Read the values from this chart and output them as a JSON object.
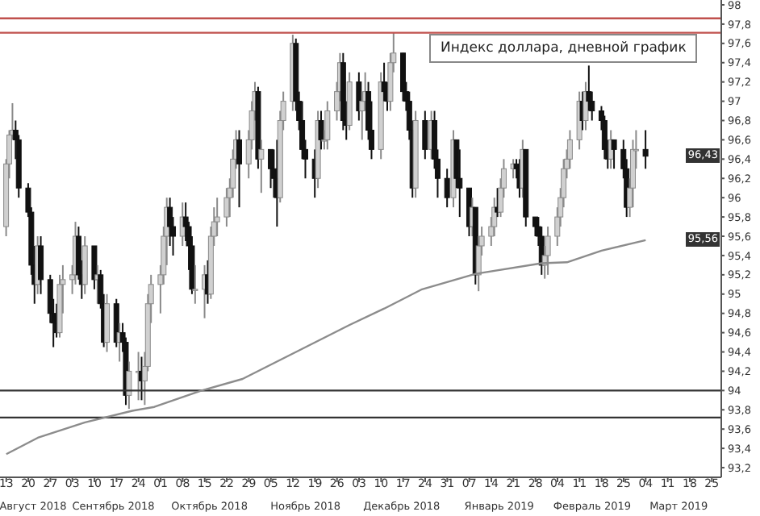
{
  "chart_data": {
    "type": "candlestick",
    "title": "Индекс доллара, дневной график",
    "x": [
      "2018-08-13",
      "2018-08-14",
      "2018-08-15",
      "2018-08-16",
      "2018-08-17",
      "2018-08-20",
      "2018-08-21",
      "2018-08-22",
      "2018-08-23",
      "2018-08-24",
      "2018-08-27",
      "2018-08-28",
      "2018-08-29",
      "2018-08-30",
      "2018-08-31",
      "2018-09-03",
      "2018-09-04",
      "2018-09-05",
      "2018-09-06",
      "2018-09-07",
      "2018-09-10",
      "2018-09-11",
      "2018-09-12",
      "2018-09-13",
      "2018-09-14",
      "2018-09-17",
      "2018-09-18",
      "2018-09-19",
      "2018-09-20",
      "2018-09-21",
      "2018-09-24",
      "2018-09-25",
      "2018-09-26",
      "2018-09-27",
      "2018-09-28",
      "2018-10-01",
      "2018-10-02",
      "2018-10-03",
      "2018-10-04",
      "2018-10-05",
      "2018-10-08",
      "2018-10-09",
      "2018-10-10",
      "2018-10-11",
      "2018-10-12",
      "2018-10-15",
      "2018-10-16",
      "2018-10-17",
      "2018-10-18",
      "2018-10-19",
      "2018-10-22",
      "2018-10-23",
      "2018-10-24",
      "2018-10-25",
      "2018-10-26",
      "2018-10-29",
      "2018-10-30",
      "2018-10-31",
      "2018-11-01",
      "2018-11-02",
      "2018-11-05",
      "2018-11-06",
      "2018-11-07",
      "2018-11-08",
      "2018-11-09",
      "2018-11-12",
      "2018-11-13",
      "2018-11-14",
      "2018-11-15",
      "2018-11-16",
      "2018-11-19",
      "2018-11-20",
      "2018-11-21",
      "2018-11-22",
      "2018-11-23",
      "2018-11-26",
      "2018-11-27",
      "2018-11-28",
      "2018-11-29",
      "2018-11-30",
      "2018-12-03",
      "2018-12-04",
      "2018-12-05",
      "2018-12-06",
      "2018-12-07",
      "2018-12-10",
      "2018-12-11",
      "2018-12-12",
      "2018-12-13",
      "2018-12-14",
      "2018-12-17",
      "2018-12-18",
      "2018-12-19",
      "2018-12-20",
      "2018-12-21",
      "2018-12-24",
      "2018-12-26",
      "2018-12-27",
      "2018-12-28",
      "2018-12-31",
      "2019-01-02",
      "2019-01-03",
      "2019-01-04",
      "2019-01-07",
      "2019-01-08",
      "2019-01-09",
      "2019-01-10",
      "2019-01-11",
      "2019-01-14",
      "2019-01-15",
      "2019-01-16",
      "2019-01-17",
      "2019-01-18",
      "2019-01-21",
      "2019-01-22",
      "2019-01-23",
      "2019-01-24",
      "2019-01-25",
      "2019-01-28",
      "2019-01-29",
      "2019-01-30",
      "2019-01-31",
      "2019-02-01",
      "2019-02-04",
      "2019-02-05",
      "2019-02-06",
      "2019-02-07",
      "2019-02-08",
      "2019-02-11",
      "2019-02-12",
      "2019-02-13",
      "2019-02-14",
      "2019-02-15",
      "2019-02-18",
      "2019-02-19",
      "2019-02-20",
      "2019-02-21",
      "2019-02-22",
      "2019-02-25",
      "2019-02-26",
      "2019-02-27",
      "2019-02-28",
      "2019-03-01",
      "2019-03-04"
    ],
    "ohlc": [
      [
        95.7,
        96.4,
        95.6,
        96.35
      ],
      [
        96.35,
        96.7,
        96.2,
        96.65
      ],
      [
        96.65,
        96.98,
        96.6,
        96.7
      ],
      [
        96.7,
        96.8,
        96.4,
        96.6
      ],
      [
        96.6,
        96.65,
        96.0,
        96.1
      ],
      [
        96.1,
        96.15,
        95.8,
        95.85
      ],
      [
        95.85,
        95.9,
        95.2,
        95.3
      ],
      [
        95.3,
        95.5,
        94.9,
        95.1
      ],
      [
        95.1,
        95.6,
        95.0,
        95.5
      ],
      [
        95.5,
        95.6,
        95.0,
        95.15
      ],
      [
        95.15,
        95.2,
        94.7,
        94.8
      ],
      [
        94.8,
        94.95,
        94.45,
        94.7
      ],
      [
        94.7,
        94.9,
        94.55,
        94.6
      ],
      [
        94.6,
        95.2,
        94.55,
        95.1
      ],
      [
        95.1,
        95.3,
        94.8,
        95.15
      ],
      [
        95.15,
        95.3,
        95.0,
        95.2
      ],
      [
        95.2,
        95.75,
        95.1,
        95.6
      ],
      [
        95.6,
        95.7,
        95.15,
        95.2
      ],
      [
        95.2,
        95.35,
        94.95,
        95.1
      ],
      [
        95.1,
        95.6,
        95.0,
        95.5
      ],
      [
        95.5,
        95.5,
        95.05,
        95.15
      ],
      [
        95.15,
        95.3,
        94.9,
        95.2
      ],
      [
        95.2,
        95.25,
        94.85,
        94.9
      ],
      [
        94.9,
        95.0,
        94.45,
        94.5
      ],
      [
        94.5,
        95.0,
        94.4,
        94.9
      ],
      [
        94.9,
        94.95,
        94.45,
        94.5
      ],
      [
        94.5,
        94.7,
        94.3,
        94.6
      ],
      [
        94.6,
        94.7,
        94.4,
        94.5
      ],
      [
        94.5,
        94.55,
        93.85,
        93.95
      ],
      [
        93.95,
        94.3,
        93.81,
        94.2
      ],
      [
        94.2,
        94.4,
        93.9,
        94.2
      ],
      [
        94.2,
        94.35,
        93.9,
        94.1
      ],
      [
        94.1,
        94.4,
        93.85,
        94.25
      ],
      [
        94.25,
        95.0,
        94.2,
        94.9
      ],
      [
        94.9,
        95.2,
        94.7,
        95.1
      ],
      [
        95.1,
        95.3,
        94.8,
        95.2
      ],
      [
        95.2,
        95.7,
        95.1,
        95.6
      ],
      [
        95.6,
        96.0,
        95.3,
        95.9
      ],
      [
        95.9,
        96.0,
        95.5,
        95.7
      ],
      [
        95.7,
        95.8,
        95.4,
        95.6
      ],
      [
        95.6,
        95.95,
        95.5,
        95.8
      ],
      [
        95.8,
        95.95,
        95.55,
        95.7
      ],
      [
        95.7,
        95.75,
        95.25,
        95.5
      ],
      [
        95.5,
        95.6,
        95.0,
        95.05
      ],
      [
        95.05,
        95.3,
        94.9,
        95.05
      ],
      [
        95.05,
        95.3,
        94.75,
        95.2
      ],
      [
        95.2,
        95.35,
        94.9,
        95.0
      ],
      [
        95.0,
        95.7,
        94.95,
        95.6
      ],
      [
        95.6,
        95.9,
        95.5,
        95.75
      ],
      [
        95.75,
        96.0,
        95.6,
        95.8
      ],
      [
        95.8,
        96.1,
        95.7,
        96.0
      ],
      [
        96.0,
        96.2,
        95.8,
        96.1
      ],
      [
        96.1,
        96.5,
        96.0,
        96.4
      ],
      [
        96.4,
        96.7,
        96.3,
        96.6
      ],
      [
        96.6,
        96.7,
        95.9,
        96.35
      ],
      [
        96.35,
        96.7,
        96.2,
        96.6
      ],
      [
        96.6,
        97.0,
        96.5,
        96.9
      ],
      [
        96.9,
        97.2,
        96.8,
        97.1
      ],
      [
        97.1,
        97.15,
        96.3,
        96.4
      ],
      [
        96.4,
        96.6,
        96.05,
        96.5
      ],
      [
        96.5,
        96.5,
        96.1,
        96.3
      ],
      [
        96.3,
        96.5,
        96.0,
        96.2
      ],
      [
        96.2,
        96.6,
        95.7,
        96.0
      ],
      [
        96.0,
        96.9,
        95.95,
        96.8
      ],
      [
        96.8,
        97.1,
        96.7,
        97.0
      ],
      [
        97.0,
        97.69,
        96.9,
        97.6
      ],
      [
        97.6,
        97.65,
        96.9,
        97.0
      ],
      [
        97.0,
        97.1,
        96.7,
        96.8
      ],
      [
        96.8,
        97.0,
        96.4,
        96.5
      ],
      [
        96.5,
        96.6,
        96.2,
        96.4
      ],
      [
        96.4,
        96.5,
        96.0,
        96.2
      ],
      [
        96.2,
        96.9,
        96.1,
        96.8
      ],
      [
        96.8,
        96.9,
        96.5,
        96.6
      ],
      [
        96.6,
        96.7,
        96.5,
        96.6
      ],
      [
        96.6,
        97.0,
        96.5,
        96.9
      ],
      [
        96.9,
        97.2,
        96.8,
        97.1
      ],
      [
        97.1,
        97.5,
        97.0,
        97.4
      ],
      [
        97.4,
        97.5,
        96.7,
        96.8
      ],
      [
        96.8,
        97.0,
        96.6,
        96.75
      ],
      [
        96.75,
        97.3,
        96.7,
        97.2
      ],
      [
        97.2,
        97.3,
        96.8,
        96.9
      ],
      [
        96.9,
        97.1,
        96.6,
        97.0
      ],
      [
        97.0,
        97.3,
        96.9,
        97.1
      ],
      [
        97.1,
        97.2,
        96.6,
        96.7
      ],
      [
        96.7,
        97.0,
        96.4,
        96.5
      ],
      [
        96.5,
        97.3,
        96.4,
        97.2
      ],
      [
        97.2,
        97.4,
        97.0,
        97.1
      ],
      [
        97.1,
        97.2,
        96.9,
        97.0
      ],
      [
        97.0,
        97.5,
        96.9,
        97.4
      ],
      [
        97.4,
        97.71,
        97.3,
        97.5
      ],
      [
        97.5,
        97.5,
        97.0,
        97.1
      ],
      [
        97.1,
        97.2,
        96.9,
        97.0
      ],
      [
        97.0,
        97.1,
        96.6,
        96.7
      ],
      [
        96.7,
        96.8,
        96.0,
        96.1
      ],
      [
        96.1,
        96.9,
        96.0,
        96.8
      ],
      [
        96.8,
        96.9,
        96.4,
        96.5
      ],
      [
        96.5,
        96.9,
        96.4,
        96.8
      ],
      [
        96.8,
        96.9,
        96.3,
        96.4
      ],
      [
        96.4,
        96.5,
        96.0,
        96.2
      ],
      [
        96.2,
        96.3,
        95.9,
        96.0
      ],
      [
        96.0,
        96.7,
        95.9,
        96.6
      ],
      [
        96.6,
        96.6,
        96.1,
        96.2
      ],
      [
        96.2,
        96.5,
        95.8,
        96.1
      ],
      [
        96.1,
        96.1,
        95.6,
        95.7
      ],
      [
        95.7,
        96.0,
        95.6,
        95.9
      ],
      [
        95.9,
        95.9,
        95.1,
        95.2
      ],
      [
        95.2,
        95.6,
        95.03,
        95.5
      ],
      [
        95.5,
        95.7,
        95.4,
        95.6
      ],
      [
        95.6,
        95.8,
        95.5,
        95.7
      ],
      [
        95.7,
        96.0,
        95.6,
        95.9
      ],
      [
        95.9,
        96.1,
        95.8,
        95.85
      ],
      [
        95.85,
        96.2,
        95.8,
        96.1
      ],
      [
        96.1,
        96.4,
        96.0,
        96.3
      ],
      [
        96.3,
        96.4,
        96.2,
        96.35
      ],
      [
        96.35,
        96.4,
        96.2,
        96.3
      ],
      [
        96.3,
        96.4,
        96.0,
        96.1
      ],
      [
        96.1,
        96.6,
        96.0,
        96.5
      ],
      [
        96.5,
        96.5,
        95.7,
        95.8
      ],
      [
        95.8,
        95.8,
        95.6,
        95.7
      ],
      [
        95.7,
        95.8,
        95.5,
        95.6
      ],
      [
        95.6,
        95.7,
        95.2,
        95.3
      ],
      [
        95.3,
        95.5,
        95.16,
        95.4
      ],
      [
        95.4,
        95.7,
        95.2,
        95.6
      ],
      [
        95.6,
        95.9,
        95.5,
        95.8
      ],
      [
        95.8,
        96.1,
        95.7,
        96.0
      ],
      [
        96.0,
        96.4,
        95.9,
        96.3
      ],
      [
        96.3,
        96.5,
        96.2,
        96.4
      ],
      [
        96.4,
        96.7,
        96.3,
        96.6
      ],
      [
        96.6,
        97.1,
        96.5,
        97.0
      ],
      [
        97.0,
        97.1,
        96.7,
        96.8
      ],
      [
        96.8,
        97.2,
        96.7,
        97.1
      ],
      [
        97.1,
        97.37,
        96.9,
        97.0
      ],
      [
        97.0,
        97.1,
        96.8,
        96.9
      ],
      [
        96.9,
        96.95,
        96.7,
        96.8
      ],
      [
        96.8,
        96.85,
        96.4,
        96.5
      ],
      [
        96.5,
        96.6,
        96.3,
        96.4
      ],
      [
        96.4,
        96.7,
        96.3,
        96.6
      ],
      [
        96.6,
        96.6,
        96.3,
        96.5
      ],
      [
        96.5,
        96.6,
        96.2,
        96.3
      ],
      [
        96.3,
        96.4,
        95.8,
        95.9
      ],
      [
        95.9,
        96.2,
        95.8,
        96.1
      ],
      [
        96.1,
        96.6,
        95.9,
        96.5
      ],
      [
        96.5,
        96.7,
        96.3,
        96.5
      ],
      [
        96.5,
        96.7,
        96.3,
        96.43
      ]
    ],
    "series": [
      {
        "type": "line",
        "color": "#8c8c8c",
        "x": [
          "2018-08-13",
          "2018-08-23",
          "2018-09-07",
          "2018-09-22",
          "2018-09-29",
          "2018-10-14",
          "2018-10-27",
          "2018-11-13",
          "2018-11-30",
          "2018-12-11",
          "2018-12-23",
          "2019-01-09",
          "2019-01-30",
          "2019-02-07",
          "2019-02-18",
          "2019-03-04"
        ],
        "values": [
          93.34,
          93.51,
          93.67,
          93.79,
          93.83,
          94.0,
          94.12,
          94.4,
          94.68,
          94.85,
          95.05,
          95.21,
          95.32,
          95.33,
          95.45,
          95.56
        ]
      }
    ],
    "xlim": [
      "2018-08-11",
      "2019-03-28"
    ],
    "xticks": [
      {
        "value": "2018-08-13",
        "label": "13"
      },
      {
        "value": "2018-08-20",
        "label": "20"
      },
      {
        "value": "2018-08-27",
        "label": "27"
      },
      {
        "value": "2018-09-03",
        "label": "03"
      },
      {
        "value": "2018-09-10",
        "label": "10"
      },
      {
        "value": "2018-09-17",
        "label": "17"
      },
      {
        "value": "2018-09-24",
        "label": "24"
      },
      {
        "value": "2018-10-01",
        "label": "01"
      },
      {
        "value": "2018-10-08",
        "label": "08"
      },
      {
        "value": "2018-10-15",
        "label": "15"
      },
      {
        "value": "2018-10-22",
        "label": "22"
      },
      {
        "value": "2018-10-29",
        "label": "29"
      },
      {
        "value": "2018-11-05",
        "label": "05"
      },
      {
        "value": "2018-11-12",
        "label": "12"
      },
      {
        "value": "2018-11-19",
        "label": "19"
      },
      {
        "value": "2018-11-26",
        "label": "26"
      },
      {
        "value": "2018-12-03",
        "label": "03"
      },
      {
        "value": "2018-12-10",
        "label": "10"
      },
      {
        "value": "2018-12-17",
        "label": "17"
      },
      {
        "value": "2018-12-24",
        "label": "24"
      },
      {
        "value": "2018-12-31",
        "label": "31"
      },
      {
        "value": "2019-01-07",
        "label": "07"
      },
      {
        "value": "2019-01-14",
        "label": "14"
      },
      {
        "value": "2019-01-21",
        "label": "21"
      },
      {
        "value": "2019-01-28",
        "label": "28"
      },
      {
        "value": "2019-02-04",
        "label": "04"
      },
      {
        "value": "2019-02-11",
        "label": "11"
      },
      {
        "value": "2019-02-18",
        "label": "18"
      },
      {
        "value": "2019-02-25",
        "label": "25"
      },
      {
        "value": "2019-03-04",
        "label": "04"
      },
      {
        "value": "2019-03-11",
        "label": "11"
      },
      {
        "value": "2019-03-18",
        "label": "18"
      },
      {
        "value": "2019-03-25",
        "label": "25"
      }
    ],
    "ylim": [
      93.1,
      98.05
    ],
    "yticks": [
      {
        "value": 93.2,
        "label": "93,2"
      },
      {
        "value": 93.4,
        "label": "93,4"
      },
      {
        "value": 93.6,
        "label": "93,6"
      },
      {
        "value": 93.8,
        "label": "93,8"
      },
      94,
      {
        "value": 94.2,
        "label": "94,2"
      },
      {
        "value": 94.4,
        "label": "94,4"
      },
      {
        "value": 94.6,
        "label": "94,6"
      },
      {
        "value": 94.8,
        "label": "94,8"
      },
      95,
      {
        "value": 95.2,
        "label": "95,2"
      },
      {
        "value": 95.4,
        "label": "95,4"
      },
      {
        "value": 95.6,
        "label": "95,6"
      },
      {
        "value": 95.8,
        "label": "95,8"
      },
      96,
      {
        "value": 96.2,
        "label": "96,2"
      },
      {
        "value": 96.4,
        "label": "96,4"
      },
      {
        "value": 96.6,
        "label": "96,6"
      },
      {
        "value": 96.8,
        "label": "96,8"
      },
      97,
      {
        "value": 97.2,
        "label": "97,2"
      },
      {
        "value": 97.4,
        "label": "97,4"
      },
      {
        "value": 97.6,
        "label": "97,6"
      },
      {
        "value": 97.8,
        "label": "97,8"
      },
      98
    ],
    "ref_lines": [
      {
        "axis": "y",
        "value": 97.86,
        "color": "#c0504d"
      },
      {
        "axis": "y",
        "value": 97.71,
        "color": "#c0504d"
      },
      {
        "axis": "y",
        "value": 94.0,
        "color": "#333333"
      },
      {
        "axis": "y",
        "value": 93.72,
        "color": "#333333"
      }
    ],
    "annotations": [
      "Август 2018",
      "Сентябрь 2018",
      "Октябрь 2018",
      "Ноябрь 2018",
      "Декабрь 2018",
      "Январь 2019",
      "Февраль 2019",
      "Март 2019",
      {
        "text": "96,43",
        "y": 96.43
      },
      {
        "text": "95,56",
        "y": 95.56
      }
    ]
  }
}
